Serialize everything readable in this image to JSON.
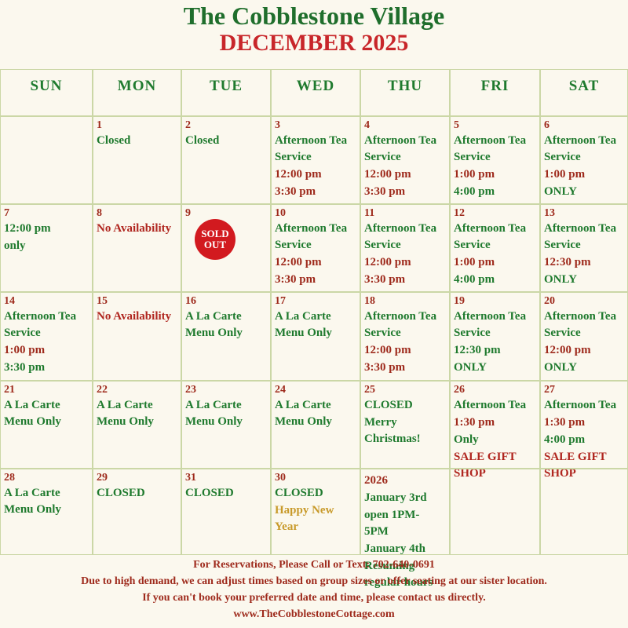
{
  "header": {
    "title": "The Cobblestone Village",
    "subtitle": "DECEMBER 2025"
  },
  "weekdays": [
    "SUN",
    "MON",
    "TUE",
    "WED",
    "THU",
    "FRI",
    "SAT"
  ],
  "cells": [
    {
      "day": null,
      "lines": []
    },
    {
      "day": "1",
      "lines": [
        {
          "text": "Closed",
          "color": "#1f7a2e"
        }
      ]
    },
    {
      "day": "2",
      "lines": [
        {
          "text": "Closed",
          "color": "#1f7a2e"
        }
      ]
    },
    {
      "day": "3",
      "lines": [
        {
          "text": "Afternoon Tea Service",
          "color": "#1f7a2e"
        },
        {
          "text": "12:00 pm",
          "color": "#9e2a1c"
        },
        {
          "text": "3:30 pm",
          "color": "#9e2a1c"
        }
      ]
    },
    {
      "day": "4",
      "lines": [
        {
          "text": "Afternoon Tea Service",
          "color": "#1f7a2e"
        },
        {
          "text": "12:00 pm",
          "color": "#9e2a1c"
        },
        {
          "text": "3:30 pm",
          "color": "#9e2a1c"
        }
      ]
    },
    {
      "day": "5",
      "lines": [
        {
          "text": "Afternoon Tea Service",
          "color": "#1f7a2e"
        },
        {
          "text": "1:00 pm",
          "color": "#9e2a1c"
        },
        {
          "text": "4:00 pm",
          "color": "#1f7a2e"
        }
      ]
    },
    {
      "day": "6",
      "lines": [
        {
          "text": "Afternoon Tea Service",
          "color": "#1f7a2e"
        },
        {
          "text": "1:00 pm",
          "color": "#9e2a1c"
        },
        {
          "text": "ONLY",
          "color": "#1f7a2e"
        }
      ]
    },
    {
      "day": "7",
      "lines": [
        {
          "text": "12:00 pm",
          "color": "#1f7a2e"
        },
        {
          "text": "only",
          "color": "#1f7a2e"
        }
      ]
    },
    {
      "day": "8",
      "lines": [
        {
          "text": "No Availability",
          "color": "#b0261f"
        }
      ]
    },
    {
      "day": "9",
      "lines": [],
      "badge": "SOLD OUT"
    },
    {
      "day": "10",
      "lines": [
        {
          "text": "Afternoon Tea Service",
          "color": "#1f7a2e"
        },
        {
          "text": "12:00 pm",
          "color": "#9e2a1c"
        },
        {
          "text": "3:30 pm",
          "color": "#9e2a1c"
        }
      ]
    },
    {
      "day": "11",
      "lines": [
        {
          "text": "Afternoon Tea Service",
          "color": "#1f7a2e"
        },
        {
          "text": "12:00 pm",
          "color": "#9e2a1c"
        },
        {
          "text": "3:30 pm",
          "color": "#9e2a1c"
        }
      ]
    },
    {
      "day": "12",
      "lines": [
        {
          "text": "Afternoon Tea Service",
          "color": "#1f7a2e"
        },
        {
          "text": "1:00 pm",
          "color": "#9e2a1c"
        },
        {
          "text": "4:00 pm",
          "color": "#1f7a2e"
        }
      ]
    },
    {
      "day": "13",
      "lines": [
        {
          "text": "Afternoon Tea Service",
          "color": "#1f7a2e"
        },
        {
          "text": "12:30 pm",
          "color": "#9e2a1c"
        },
        {
          "text": "ONLY",
          "color": "#1f7a2e"
        }
      ]
    },
    {
      "day": "14",
      "lines": [
        {
          "text": "Afternoon Tea Service",
          "color": "#1f7a2e"
        },
        {
          "text": "1:00 pm",
          "color": "#9e2a1c"
        },
        {
          "text": "3:30 pm",
          "color": "#1f7a2e"
        }
      ]
    },
    {
      "day": "15",
      "lines": [
        {
          "text": "No Availability",
          "color": "#b0261f"
        }
      ]
    },
    {
      "day": "16",
      "lines": [
        {
          "text": "A La Carte Menu Only",
          "color": "#1f7a2e"
        }
      ]
    },
    {
      "day": "17",
      "lines": [
        {
          "text": "A La Carte Menu Only",
          "color": "#1f7a2e"
        }
      ]
    },
    {
      "day": "18",
      "lines": [
        {
          "text": "Afternoon Tea Service",
          "color": "#1f7a2e"
        },
        {
          "text": "12:00 pm",
          "color": "#9e2a1c"
        },
        {
          "text": "3:30 pm",
          "color": "#9e2a1c"
        }
      ]
    },
    {
      "day": "19",
      "lines": [
        {
          "text": "Afternoon Tea Service",
          "color": "#1f7a2e"
        },
        {
          "text": "12:30 pm",
          "color": "#1f7a2e"
        },
        {
          "text": "ONLY",
          "color": "#1f7a2e"
        }
      ]
    },
    {
      "day": "20",
      "lines": [
        {
          "text": "Afternoon Tea Service",
          "color": "#1f7a2e"
        },
        {
          "text": "12:00 pm",
          "color": "#9e2a1c"
        },
        {
          "text": "ONLY",
          "color": "#1f7a2e"
        }
      ]
    },
    {
      "day": "21",
      "lines": [
        {
          "text": "A La Carte Menu Only",
          "color": "#1f7a2e"
        }
      ]
    },
    {
      "day": "22",
      "lines": [
        {
          "text": "A La Carte Menu Only",
          "color": "#1f7a2e"
        }
      ]
    },
    {
      "day": "23",
      "lines": [
        {
          "text": "A La Carte Menu Only",
          "color": "#1f7a2e"
        }
      ]
    },
    {
      "day": "24",
      "lines": [
        {
          "text": "A La Carte Menu Only",
          "color": "#1f7a2e"
        }
      ]
    },
    {
      "day": "25",
      "lines": [
        {
          "text": "CLOSED",
          "color": "#1f7a2e"
        },
        {
          "text": "Merry Christmas!",
          "color": "#1f7a2e"
        }
      ]
    },
    {
      "day": "26",
      "lines": [
        {
          "text": "Afternoon Tea",
          "color": "#1f7a2e"
        },
        {
          "text": "1:30 pm",
          "color": "#9e2a1c"
        },
        {
          "text": "Only",
          "color": "#1f7a2e"
        },
        {
          "text": "SALE GIFT SHOP",
          "color": "#b0261f"
        }
      ]
    },
    {
      "day": "27",
      "lines": [
        {
          "text": "Afternoon Tea",
          "color": "#1f7a2e"
        },
        {
          "text": "1:30 pm",
          "color": "#9e2a1c"
        },
        {
          "text": "4:00 pm",
          "color": "#1f7a2e"
        },
        {
          "text": "SALE GIFT SHOP",
          "color": "#b0261f"
        }
      ]
    },
    {
      "day": "28",
      "lines": [
        {
          "text": "A La Carte Menu Only",
          "color": "#1f7a2e"
        }
      ]
    },
    {
      "day": "29",
      "lines": [
        {
          "text": "CLOSED",
          "color": "#1f7a2e"
        }
      ]
    },
    {
      "day": "31",
      "lines": [
        {
          "text": "CLOSED",
          "color": "#1f7a2e"
        }
      ]
    },
    {
      "day": "30",
      "lines": [
        {
          "text": "CLOSED",
          "color": "#1f7a2e"
        },
        {
          "text": "Happy New Year",
          "color": "#c89a2a"
        }
      ]
    },
    {
      "day": null,
      "lines": [
        {
          "text": "2026",
          "color": "#9e2a1c"
        },
        {
          "text": "January 3rd",
          "color": "#1f7a2e"
        },
        {
          "text": "open 1PM- 5PM",
          "color": "#1f7a2e"
        },
        {
          "text": "January 4th",
          "color": "#1f7a2e"
        },
        {
          "text": "Resuming regular hours",
          "color": "#1f7a2e"
        }
      ]
    },
    {
      "day": null,
      "lines": []
    },
    {
      "day": null,
      "lines": []
    }
  ],
  "footer": [
    "For Reservations, Please Call or Text: 702-640-0691",
    "Due to high demand, we can adjust times based on group sizes or offer seating at our sister location.",
    "If you can't book your preferred date and time, please contact us directly.",
    "www.TheCobblestoneCottage.com"
  ]
}
